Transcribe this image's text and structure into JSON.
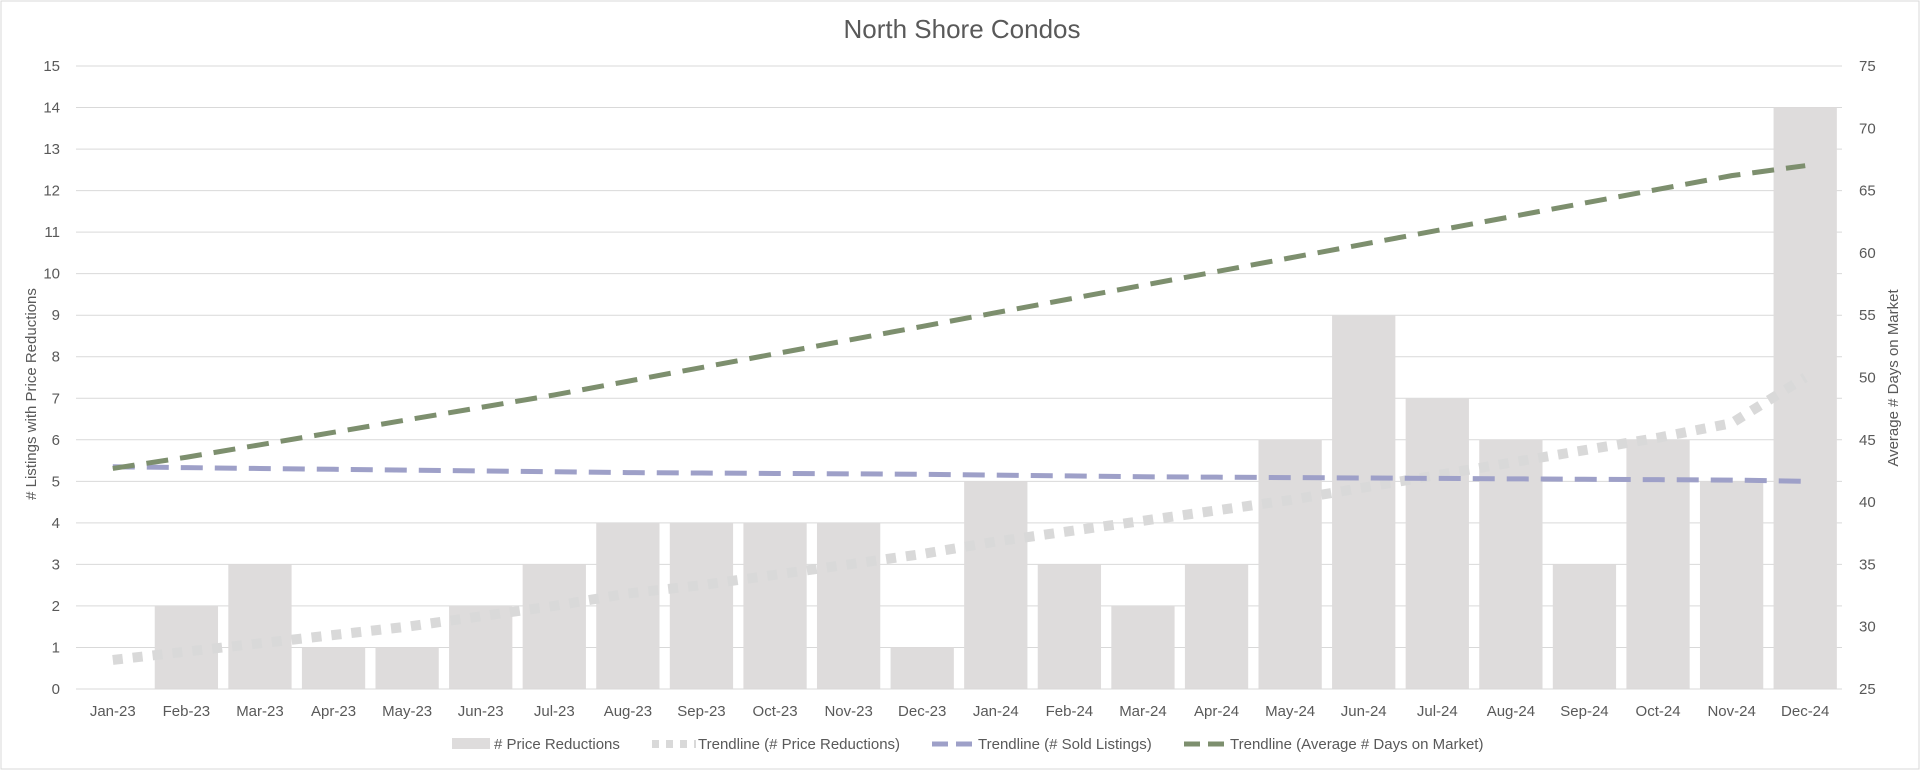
{
  "chart_data": {
    "type": "bar",
    "title": "North Shore Condos",
    "ylabel": "# Listings with Price Reductions",
    "y2label": "Average # Days on Market",
    "ylim": [
      0,
      15
    ],
    "y2lim": [
      25,
      75
    ],
    "y_ticks": [
      0,
      1,
      2,
      3,
      4,
      5,
      6,
      7,
      8,
      9,
      10,
      11,
      12,
      13,
      14,
      15
    ],
    "y2_ticks": [
      25,
      30,
      35,
      40,
      45,
      50,
      55,
      60,
      65,
      70,
      75
    ],
    "grid": true,
    "legend_position": "bottom",
    "categories": [
      "Jan-23",
      "Feb-23",
      "Mar-23",
      "Apr-23",
      "May-23",
      "Jun-23",
      "Jul-23",
      "Aug-23",
      "Sep-23",
      "Oct-23",
      "Nov-23",
      "Dec-23",
      "Jan-24",
      "Feb-24",
      "Mar-24",
      "Apr-24",
      "May-24",
      "Jun-24",
      "Jul-24",
      "Aug-24",
      "Sep-24",
      "Oct-24",
      "Nov-24",
      "Dec-24"
    ],
    "series": [
      {
        "name": "# Price Reductions",
        "kind": "bar",
        "axis": "left",
        "color": "#dedcdc",
        "values": [
          0,
          2,
          3,
          1,
          1,
          2,
          3,
          4,
          4,
          4,
          4,
          1,
          5,
          3,
          2,
          3,
          6,
          9,
          7,
          6,
          3,
          6,
          5,
          14
        ]
      },
      {
        "name": "Trendline (# Price Reductions)",
        "kind": "line",
        "style": "dotted",
        "axis": "left",
        "color": "#d9d9d9",
        "values": [
          0.7,
          0.9,
          1.1,
          1.3,
          1.5,
          1.75,
          2.0,
          2.3,
          2.5,
          2.75,
          3.0,
          3.25,
          3.55,
          3.8,
          4.05,
          4.3,
          4.55,
          4.85,
          5.15,
          5.45,
          5.75,
          6.05,
          6.4,
          7.5
        ]
      },
      {
        "name": "Trendline (# Sold Listings)",
        "kind": "line",
        "style": "dashed",
        "axis": "left",
        "color": "#9ea0c8",
        "values": [
          5.35,
          5.33,
          5.31,
          5.29,
          5.27,
          5.25,
          5.23,
          5.21,
          5.2,
          5.19,
          5.18,
          5.17,
          5.15,
          5.13,
          5.11,
          5.1,
          5.09,
          5.08,
          5.07,
          5.06,
          5.05,
          5.04,
          5.03,
          5.0
        ]
      },
      {
        "name": "Trendline (Average # Days on Market)",
        "kind": "line",
        "style": "dashed",
        "axis": "right",
        "color": "#7d8f6e",
        "values": [
          42.7,
          43.6,
          44.6,
          45.6,
          46.6,
          47.6,
          48.6,
          49.7,
          50.8,
          51.9,
          53.0,
          54.1,
          55.2,
          56.3,
          57.4,
          58.5,
          59.6,
          60.7,
          61.8,
          62.9,
          64.0,
          65.1,
          66.2,
          67.0
        ]
      }
    ]
  }
}
